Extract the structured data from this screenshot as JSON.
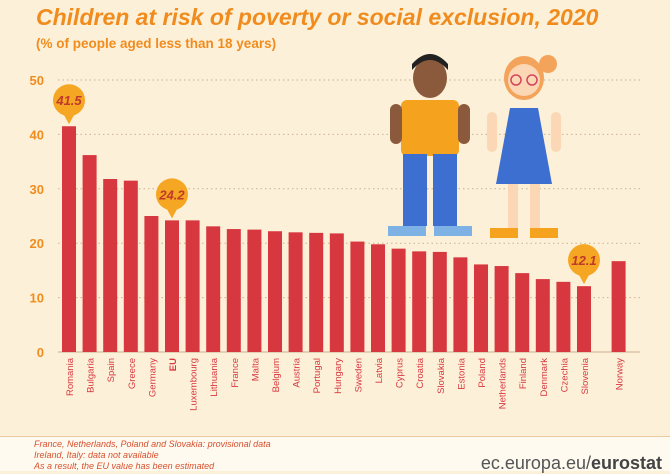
{
  "title": "Children at risk of poverty or social exclusion, 2020",
  "subtitle": "(% of people aged less than 18 years)",
  "notes": [
    "France, Netherlands, Poland and Slovakia: provisional data",
    "Ireland, Italy: data not available",
    "As a result, the EU value has been estimated"
  ],
  "source_prefix": "ec.europa.eu/",
  "source_brand": "eurostat",
  "colors": {
    "bar": "#d7373f",
    "title": "#f08c1e",
    "badge": "#f5a623",
    "badge_text": "#c0392b",
    "background": "#fdf0d8"
  },
  "chart_data": {
    "type": "bar",
    "title": "Children at risk of poverty or social exclusion, 2020",
    "ylabel": "",
    "xlabel": "",
    "ylim": [
      0,
      50
    ],
    "yticks": [
      0,
      10,
      20,
      30,
      40,
      50
    ],
    "grid": "horizontal dotted",
    "categories": [
      "Romania",
      "Bulgaria",
      "Spain",
      "Greece",
      "Germany",
      "EU",
      "Luxembourg",
      "Lithuania",
      "France",
      "Malta",
      "Belgium",
      "Austria",
      "Portugal",
      "Hungary",
      "Sweden",
      "Latvia",
      "Cyprus",
      "Croatia",
      "Slovakia",
      "Estonia",
      "Poland",
      "Netherlands",
      "Finland",
      "Denmark",
      "Czechia",
      "Slovenia",
      "Norway"
    ],
    "values": [
      41.5,
      36.2,
      31.8,
      31.5,
      25.0,
      24.2,
      24.2,
      23.1,
      22.6,
      22.5,
      22.2,
      22.0,
      21.9,
      21.8,
      20.3,
      19.8,
      19.0,
      18.5,
      18.4,
      17.4,
      16.1,
      15.8,
      14.5,
      13.4,
      12.9,
      12.1,
      16.7
    ],
    "callouts": [
      {
        "category": "Romania",
        "label": "41.5"
      },
      {
        "category": "EU",
        "label": "24.2"
      },
      {
        "category": "Slovenia",
        "label": "12.1"
      }
    ]
  }
}
